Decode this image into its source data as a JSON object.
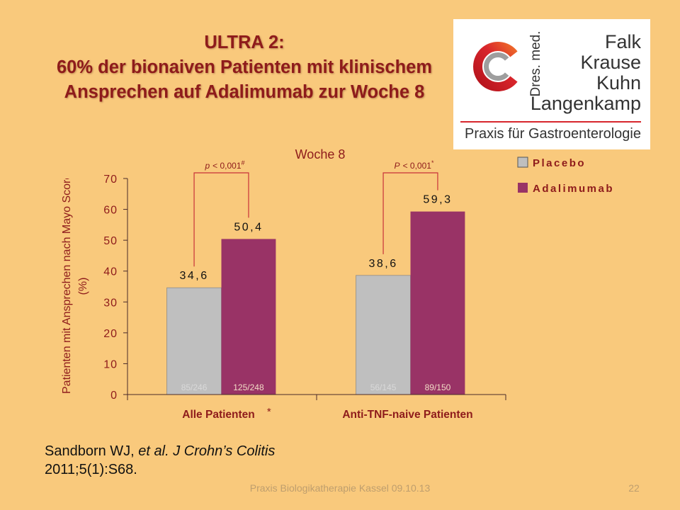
{
  "theme": {
    "background": "#F9C97C"
  },
  "title": {
    "line1": "ULTRA 2:",
    "line2": "60% der bionaiven Patienten mit klinischem",
    "line3": "Ansprechen auf Adalimumab zur Woche 8"
  },
  "logo": {
    "icon": "praxis-logo-icon",
    "vertical_text": "Dres. med.",
    "names": [
      "Falk",
      "Krause",
      "Kuhn",
      "Langenkamp"
    ],
    "subtitle": "Praxis für Gastroenterologie"
  },
  "chart_data": {
    "type": "bar",
    "title": "Woche 8",
    "ylabel": "Patienten mit Ansprechen nach Mayo Score",
    "ylabel_unit": "(%)",
    "xlabel": "",
    "categories": [
      "Alle Patienten",
      "Anti-TNF-naive Patienten"
    ],
    "category_marks": [
      "*",
      ""
    ],
    "ylim": [
      0,
      70
    ],
    "yticks": [
      0,
      10,
      20,
      30,
      40,
      50,
      60,
      70
    ],
    "grid": false,
    "legend": "right",
    "series": [
      {
        "name": "Placebo",
        "color": "#BFBFBF",
        "values": [
          34.6,
          38.6
        ],
        "value_labels": [
          "34,6",
          "38,6"
        ],
        "counts": [
          "85/246",
          "56/145"
        ]
      },
      {
        "name": "Adalimumab",
        "color": "#993366",
        "values": [
          50.4,
          59.3
        ],
        "value_labels": [
          "50,4",
          "59,3"
        ],
        "counts": [
          "125/248",
          "89/150"
        ]
      }
    ],
    "significance": [
      {
        "symbol": "p",
        "comparison": "< 0,001",
        "mark": "#"
      },
      {
        "symbol": "P",
        "comparison": "< 0,001",
        "mark": "*"
      }
    ]
  },
  "citation": {
    "authors": "Sandborn WJ,",
    "journal": "et al. J Crohn’s Colitis",
    "reference": "2011;5(1):S68."
  },
  "footer": {
    "text": "Praxis Biologikatherapie Kassel 09.10.13",
    "page_number": "22"
  }
}
